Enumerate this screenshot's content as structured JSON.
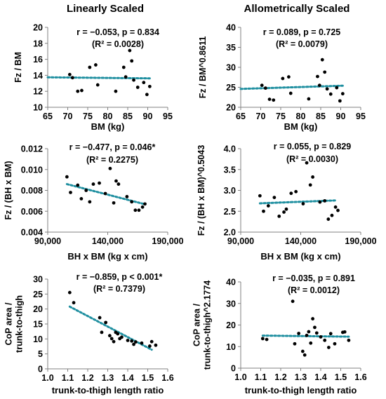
{
  "column_titles": {
    "left": "Linearly Scaled",
    "right": "Allometrically Scaled"
  },
  "chart_data": [
    {
      "id": "p1",
      "type": "scatter",
      "xlabel": "BM (kg)",
      "ylabel": [
        "Fz / BM"
      ],
      "xlim": [
        65,
        95
      ],
      "ylim": [
        10,
        20
      ],
      "xticks": [
        65,
        70,
        75,
        80,
        85,
        90,
        95
      ],
      "xtick_labels": [
        "65",
        "70",
        "75",
        "80",
        "85",
        "90",
        "95"
      ],
      "yticks": [
        10,
        12,
        14,
        16,
        18,
        20
      ],
      "ytick_labels": [
        "10",
        "12",
        "14",
        "16",
        "18",
        "20"
      ],
      "annotation": [
        "r = −0.053, p = 0.834",
        "(R² = 0.0028)"
      ],
      "trend": {
        "x": [
          65,
          90.5
        ],
        "y": [
          13.75,
          13.62
        ]
      },
      "points": [
        [
          70.5,
          14.1
        ],
        [
          71.2,
          13.7
        ],
        [
          72.5,
          12.0
        ],
        [
          73.5,
          12.1
        ],
        [
          75.5,
          15.0
        ],
        [
          77.0,
          15.3
        ],
        [
          77.5,
          12.8
        ],
        [
          82.0,
          12.0
        ],
        [
          84.0,
          15.0
        ],
        [
          84.5,
          13.8
        ],
        [
          85.5,
          17.1
        ],
        [
          86.0,
          15.8
        ],
        [
          86.5,
          13.4
        ],
        [
          87.5,
          12.5
        ],
        [
          89.0,
          13.1
        ],
        [
          89.8,
          11.6
        ],
        [
          90.5,
          12.6
        ]
      ]
    },
    {
      "id": "p2",
      "type": "scatter",
      "xlabel": "BM (kg)",
      "ylabel": [
        "Fz / BM^0.8611"
      ],
      "xlim": [
        65,
        95
      ],
      "ylim": [
        20,
        40
      ],
      "xticks": [
        65,
        70,
        75,
        80,
        85,
        90,
        95
      ],
      "xtick_labels": [
        "65",
        "70",
        "75",
        "80",
        "85",
        "90",
        "95"
      ],
      "yticks": [
        20,
        25,
        30,
        35,
        40
      ],
      "ytick_labels": [
        "20",
        "25",
        "30",
        "35",
        "40"
      ],
      "annotation": [
        "r = 0.089, p = 0.725",
        "(R² = 0.0079)"
      ],
      "trend": {
        "x": [
          65,
          90.5
        ],
        "y": [
          24.6,
          25.4
        ]
      },
      "points": [
        [
          70.3,
          25.5
        ],
        [
          71.2,
          24.8
        ],
        [
          72.2,
          22.0
        ],
        [
          73.2,
          21.8
        ],
        [
          75.5,
          27.2
        ],
        [
          77.0,
          27.6
        ],
        [
          77.5,
          23.5
        ],
        [
          82.0,
          22.1
        ],
        [
          84.2,
          27.7
        ],
        [
          84.7,
          25.5
        ],
        [
          85.4,
          31.9
        ],
        [
          86.0,
          28.8
        ],
        [
          86.6,
          24.6
        ],
        [
          87.5,
          23.3
        ],
        [
          89.0,
          24.9
        ],
        [
          89.8,
          21.6
        ],
        [
          90.5,
          23.4
        ]
      ]
    },
    {
      "id": "p3",
      "type": "scatter",
      "xlabel": "BH x BM (kg x cm)",
      "ylabel": [
        "Fz / (BH x BM)"
      ],
      "xlim": [
        90000,
        190000
      ],
      "ylim": [
        0.004,
        0.012
      ],
      "xticks": [
        90000,
        140000,
        190000
      ],
      "xtick_labels": [
        "90,000",
        "140,000",
        "190,000"
      ],
      "yticks": [
        0.004,
        0.006,
        0.008,
        0.01,
        0.012
      ],
      "ytick_labels": [
        "0.004",
        "0.006",
        "0.008",
        "0.010",
        "0.012"
      ],
      "annotation": [
        "r = −0.477, p = 0.046*",
        "(R² = 0.2275)"
      ],
      "trend": {
        "x": [
          106000,
          170000
        ],
        "y": [
          0.0086,
          0.0067
        ]
      },
      "points": [
        [
          106000,
          0.0093
        ],
        [
          109000,
          0.0078
        ],
        [
          115000,
          0.0085
        ],
        [
          118000,
          0.0072
        ],
        [
          122000,
          0.008
        ],
        [
          125000,
          0.0069
        ],
        [
          128000,
          0.0086
        ],
        [
          133000,
          0.0087
        ],
        [
          138000,
          0.0077
        ],
        [
          142000,
          0.0101
        ],
        [
          145000,
          0.0068
        ],
        [
          147000,
          0.0089
        ],
        [
          149000,
          0.0086
        ],
        [
          156000,
          0.0074
        ],
        [
          160000,
          0.0069
        ],
        [
          163000,
          0.0061
        ],
        [
          166000,
          0.0061
        ],
        [
          169000,
          0.0064
        ],
        [
          171000,
          0.0067
        ]
      ]
    },
    {
      "id": "p4",
      "type": "scatter",
      "xlabel": "BH x BM (kg x cm)",
      "ylabel": [
        "Fz / (BH x BM)^0.5043"
      ],
      "xlim": [
        90000,
        190000
      ],
      "ylim": [
        2.0,
        4.0
      ],
      "xticks": [
        90000,
        140000,
        190000
      ],
      "xtick_labels": [
        "90,000",
        "140,000",
        "190,000"
      ],
      "yticks": [
        2.0,
        2.5,
        3.0,
        3.5,
        4.0
      ],
      "ytick_labels": [
        "2.0",
        "2.5",
        "3.0",
        "3.5",
        "4.0"
      ],
      "annotation": [
        "r = 0.055, p = 0.829",
        "(R² = 0.0030)"
      ],
      "trend": {
        "x": [
          106000,
          170000
        ],
        "y": [
          2.69,
          2.76
        ]
      },
      "points": [
        [
          106000,
          2.87
        ],
        [
          109000,
          2.5
        ],
        [
          113000,
          2.63
        ],
        [
          118000,
          2.83
        ],
        [
          122000,
          2.38
        ],
        [
          126000,
          2.48
        ],
        [
          128000,
          2.55
        ],
        [
          132000,
          2.93
        ],
        [
          136000,
          2.97
        ],
        [
          142000,
          2.68
        ],
        [
          145000,
          3.66
        ],
        [
          148000,
          3.13
        ],
        [
          150000,
          3.32
        ],
        [
          156000,
          2.72
        ],
        [
          160000,
          2.75
        ],
        [
          163000,
          2.31
        ],
        [
          166000,
          2.4
        ],
        [
          169000,
          2.6
        ],
        [
          171000,
          2.52
        ]
      ]
    },
    {
      "id": "p5",
      "type": "scatter",
      "xlabel": "trunk-to-thigh length ratio",
      "ylabel": [
        "CoP area /",
        "trunk-to-thigh"
      ],
      "xlim": [
        1.0,
        1.6
      ],
      "ylim": [
        0,
        30
      ],
      "xticks": [
        1.0,
        1.1,
        1.2,
        1.3,
        1.4,
        1.5,
        1.6
      ],
      "xtick_labels": [
        "1.0",
        "1.1",
        "1.2",
        "1.3",
        "1.4",
        "1.5",
        "1.6"
      ],
      "yticks": [
        0,
        5,
        10,
        15,
        20,
        25,
        30
      ],
      "ytick_labels": [
        "0",
        "5",
        "10",
        "15",
        "20",
        "25",
        "30"
      ],
      "annotation": [
        "r = −0.859, p < 0.001*",
        "(R² = 0.7379)"
      ],
      "trend": {
        "x": [
          1.11,
          1.52
        ],
        "y": [
          20.8,
          6.4
        ]
      },
      "points": [
        [
          1.11,
          25.5
        ],
        [
          1.13,
          22.1
        ],
        [
          1.26,
          17.1
        ],
        [
          1.27,
          12.2
        ],
        [
          1.29,
          15.5
        ],
        [
          1.31,
          11.1
        ],
        [
          1.32,
          10.1
        ],
        [
          1.33,
          9.1
        ],
        [
          1.34,
          12.2
        ],
        [
          1.35,
          11.7
        ],
        [
          1.36,
          10.1
        ],
        [
          1.37,
          10.6
        ],
        [
          1.4,
          9.5
        ],
        [
          1.42,
          9.3
        ],
        [
          1.43,
          8.2
        ],
        [
          1.44,
          9.0
        ],
        [
          1.47,
          8.6
        ],
        [
          1.51,
          7.6
        ],
        [
          1.52,
          9.1
        ],
        [
          1.54,
          7.9
        ]
      ]
    },
    {
      "id": "p6",
      "type": "scatter",
      "xlabel": "trunk-to-thigh length ratio",
      "ylabel": [
        "CoP area /",
        "trunk-to-thigh^2.1774"
      ],
      "xlim": [
        1.0,
        1.6
      ],
      "ylim": [
        0,
        40
      ],
      "xticks": [
        1.0,
        1.1,
        1.2,
        1.3,
        1.4,
        1.5,
        1.6
      ],
      "xtick_labels": [
        "1.0",
        "1.1",
        "1.2",
        "1.3",
        "1.4",
        "1.5",
        "1.6"
      ],
      "yticks": [
        0,
        10,
        20,
        30,
        40
      ],
      "ytick_labels": [
        "0",
        "10",
        "20",
        "30",
        "40"
      ],
      "annotation": [
        "r = −0.035, p = 0.891",
        "(R² = 0.0012)"
      ],
      "trend": {
        "x": [
          1.11,
          1.54
        ],
        "y": [
          15.1,
          14.6
        ]
      },
      "points": [
        [
          1.11,
          13.7
        ],
        [
          1.13,
          13.3
        ],
        [
          1.26,
          31.0
        ],
        [
          1.27,
          11.3
        ],
        [
          1.29,
          16.1
        ],
        [
          1.31,
          7.8
        ],
        [
          1.32,
          6.1
        ],
        [
          1.33,
          15.2
        ],
        [
          1.34,
          16.9
        ],
        [
          1.35,
          11.6
        ],
        [
          1.36,
          22.9
        ],
        [
          1.37,
          18.9
        ],
        [
          1.38,
          16.3
        ],
        [
          1.4,
          14.5
        ],
        [
          1.42,
          12.9
        ],
        [
          1.44,
          9.6
        ],
        [
          1.45,
          16.0
        ],
        [
          1.47,
          11.3
        ],
        [
          1.51,
          16.6
        ],
        [
          1.52,
          16.8
        ],
        [
          1.54,
          12.9
        ]
      ]
    }
  ]
}
